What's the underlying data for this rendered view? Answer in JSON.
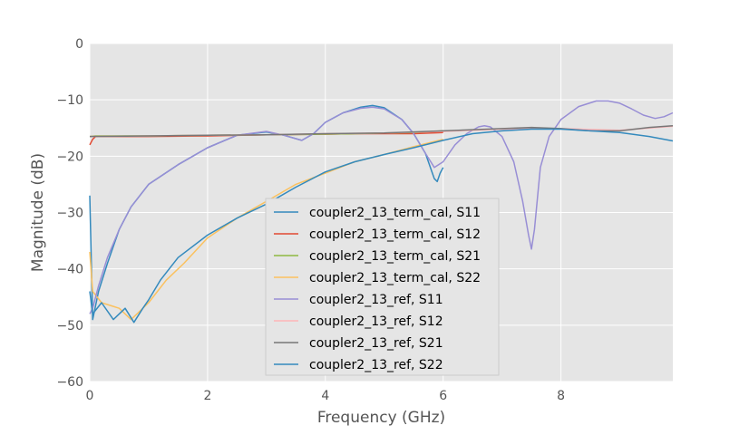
{
  "chart_data": {
    "type": "line",
    "title": "",
    "xlabel": "Frequency (GHz)",
    "ylabel": "Magnitude (dB)",
    "xlim": [
      0,
      9.9
    ],
    "ylim": [
      -60,
      0
    ],
    "xticks": [
      0,
      2,
      4,
      6,
      8
    ],
    "xtick_labels": [
      "0",
      "2",
      "4",
      "6",
      "8"
    ],
    "yticks": [
      0,
      -10,
      -20,
      -30,
      -40,
      -50,
      -60
    ],
    "ytick_labels": [
      "0",
      "−10",
      "−20",
      "−30",
      "−40",
      "−50",
      "−60"
    ],
    "grid": true,
    "legend_position": "lower-center",
    "series": [
      {
        "name": "coupler2_13_term_cal, S11",
        "color": "#348abd",
        "x": [
          0,
          0.05,
          0.15,
          0.3,
          0.5,
          0.7,
          1.0,
          1.5,
          2.0,
          2.5,
          3.0,
          3.3,
          3.6,
          3.8,
          4.0,
          4.3,
          4.6,
          4.8,
          5.0,
          5.3,
          5.5,
          5.7,
          5.8,
          5.85,
          5.9,
          5.95,
          6.0
        ],
        "y": [
          -27,
          -49,
          -44,
          -39,
          -33,
          -29,
          -25,
          -21.5,
          -18.5,
          -16.3,
          -15.7,
          -16.3,
          -17.2,
          -16,
          -14,
          -12.3,
          -11.3,
          -11,
          -11.4,
          -13.5,
          -16,
          -19.5,
          -22.5,
          -24,
          -24.5,
          -23,
          -22
        ]
      },
      {
        "name": "coupler2_13_term_cal, S12",
        "color": "#e24a33",
        "x": [
          0,
          0.05,
          0.1,
          1.0,
          2.0,
          3.0,
          4.0,
          4.5,
          5.0,
          5.5,
          6.0
        ],
        "y": [
          -18,
          -17,
          -16.5,
          -16.5,
          -16.4,
          -16.2,
          -16.1,
          -16,
          -16,
          -16,
          -15.8
        ]
      },
      {
        "name": "coupler2_13_term_cal, S21",
        "color": "#8eba42",
        "x": [
          0,
          0.1,
          1.0,
          2.0,
          3.0,
          4.0,
          4.5,
          5.0,
          5.5,
          6.0
        ],
        "y": [
          -16.5,
          -16.4,
          -16.4,
          -16.3,
          -16.2,
          -16.1,
          -16,
          -15.9,
          -15.8,
          -15.5
        ]
      },
      {
        "name": "coupler2_13_term_cal, S22",
        "color": "#fbc15e",
        "x": [
          0,
          0.05,
          0.2,
          0.5,
          0.7,
          0.8,
          1.0,
          1.3,
          1.6,
          2.0,
          2.5,
          3.0,
          3.5,
          4.0,
          4.5,
          5.0,
          5.5,
          6.0
        ],
        "y": [
          -37,
          -44,
          -46,
          -47,
          -49,
          -48,
          -46,
          -42,
          -39,
          -34.5,
          -31,
          -28,
          -25,
          -23,
          -21,
          -19.7,
          -18.3,
          -17
        ]
      },
      {
        "name": "coupler2_13_ref, S11",
        "color": "#988ed5",
        "x": [
          0,
          0.05,
          0.15,
          0.3,
          0.5,
          0.7,
          1.0,
          1.5,
          2.0,
          2.5,
          3.0,
          3.3,
          3.6,
          3.8,
          4.0,
          4.3,
          4.6,
          4.8,
          5.0,
          5.3,
          5.5,
          5.7,
          5.85,
          6.0,
          6.2,
          6.4,
          6.6,
          6.7,
          6.8,
          7.0,
          7.2,
          7.35,
          7.45,
          7.5,
          7.55,
          7.65,
          7.8,
          8.0,
          8.3,
          8.6,
          8.8,
          9.0,
          9.2,
          9.4,
          9.6,
          9.75,
          9.9
        ],
        "y": [
          -48,
          -47,
          -43,
          -38,
          -33,
          -29,
          -25,
          -21.5,
          -18.5,
          -16.3,
          -15.6,
          -16.3,
          -17.2,
          -16,
          -14,
          -12.3,
          -11.5,
          -11.3,
          -11.6,
          -13.5,
          -16,
          -19.5,
          -22,
          -21,
          -18,
          -16,
          -14.8,
          -14.6,
          -14.8,
          -16.5,
          -21,
          -28,
          -34,
          -36.5,
          -33,
          -22,
          -16.5,
          -13.5,
          -11.2,
          -10.2,
          -10.2,
          -10.6,
          -11.6,
          -12.7,
          -13.3,
          -13,
          -12.3
        ]
      },
      {
        "name": "coupler2_13_ref, S12",
        "color": "#ffb5b8",
        "x": [
          0,
          1.0,
          2.0,
          3.0,
          4.0,
          5.0,
          6.0,
          7.0,
          8.0,
          9.0,
          9.9
        ],
        "y": [
          -16.5,
          -16.4,
          -16.3,
          -16.2,
          -16,
          -15.9,
          -15.6,
          -15.2,
          -15.1,
          -15.4,
          -14.7
        ]
      },
      {
        "name": "coupler2_13_ref, S21",
        "color": "#777777",
        "x": [
          0,
          1.0,
          2.0,
          3.0,
          4.0,
          5.0,
          6.0,
          6.5,
          7.0,
          7.5,
          8.0,
          8.5,
          9.0,
          9.5,
          9.9
        ],
        "y": [
          -16.5,
          -16.4,
          -16.3,
          -16.2,
          -16,
          -15.9,
          -15.5,
          -15.3,
          -15.1,
          -14.9,
          -15.1,
          -15.5,
          -15.5,
          -14.9,
          -14.6
        ]
      },
      {
        "name": "coupler2_13_ref, S22",
        "color": "#348abd",
        "x": [
          0,
          0.05,
          0.2,
          0.4,
          0.6,
          0.75,
          0.9,
          1.0,
          1.2,
          1.5,
          2.0,
          2.5,
          3.0,
          3.5,
          4.0,
          4.5,
          5.0,
          5.5,
          6.0,
          6.5,
          7.0,
          7.5,
          8.0,
          8.5,
          9.0,
          9.5,
          9.9
        ],
        "y": [
          -44,
          -48,
          -46,
          -49,
          -47,
          -49.5,
          -47,
          -45.5,
          -42,
          -38,
          -34,
          -31,
          -28.5,
          -25.5,
          -22.8,
          -21,
          -19.7,
          -18.5,
          -17.2,
          -16,
          -15.5,
          -15.2,
          -15.2,
          -15.5,
          -15.8,
          -16.5,
          -17.3
        ]
      }
    ]
  }
}
